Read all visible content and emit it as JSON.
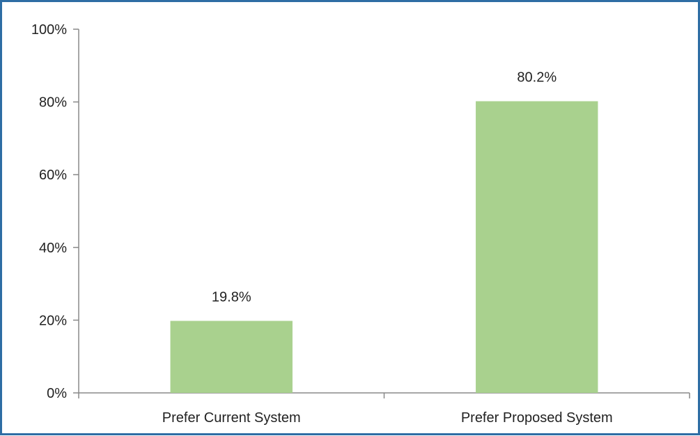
{
  "chart_data": {
    "type": "bar",
    "categories": [
      "Prefer Current System",
      "Prefer Proposed System"
    ],
    "values": [
      19.8,
      80.2
    ],
    "data_labels": [
      "19.8%",
      "80.2%"
    ],
    "title": "",
    "xlabel": "",
    "ylabel": "",
    "ylim": [
      0,
      100
    ],
    "yticks": [
      0,
      20,
      40,
      60,
      80,
      100
    ],
    "ytick_labels": [
      "0%",
      "20%",
      "40%",
      "60%",
      "80%",
      "100%"
    ],
    "grid": false,
    "legend": "none",
    "colors": {
      "bar": "#a9d18e",
      "frame": "#2e6da4",
      "axis": "#888888",
      "text": "#222222"
    }
  }
}
